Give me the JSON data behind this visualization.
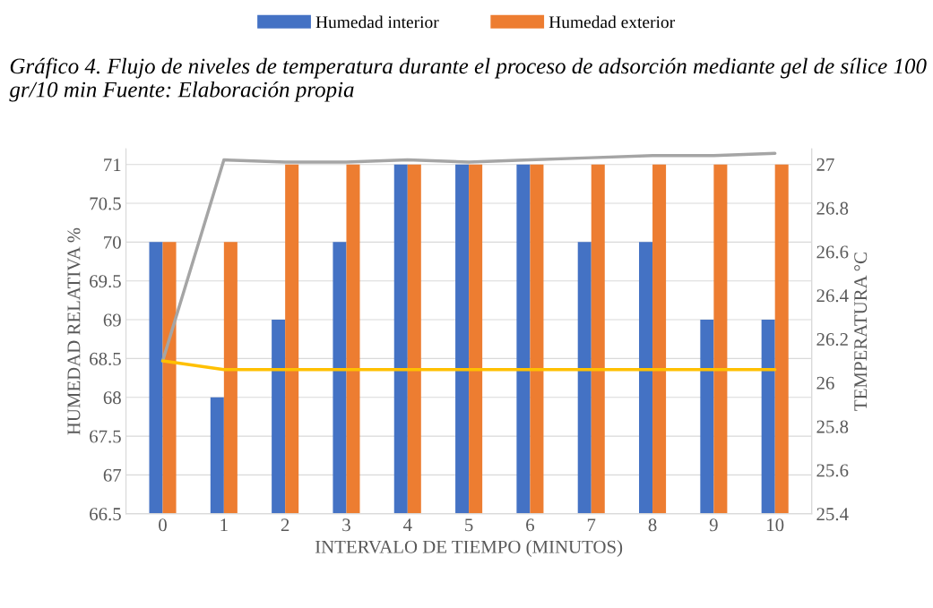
{
  "chart_data": {
    "type": "bar",
    "title": "Gráfico 4. Flujo de niveles de temperatura durante el proceso de adsorción mediante gel de sílice 100 gr/10 min Fuente: Elaboración propia",
    "categories": [
      "0",
      "1",
      "2",
      "3",
      "4",
      "5",
      "6",
      "7",
      "8",
      "9",
      "10"
    ],
    "series": [
      {
        "name": "Humedad interior",
        "color": "#4472c4",
        "values": [
          70,
          68,
          69,
          70,
          71,
          71,
          71,
          70,
          70,
          69,
          69
        ]
      },
      {
        "name": "Humedad exterior",
        "color": "#ed7d31",
        "values": [
          70,
          70,
          71,
          71,
          71,
          71,
          71,
          71,
          71,
          71,
          71
        ]
      },
      {
        "type": "line",
        "axis": "y2",
        "color": "#a5a5a5",
        "values": [
          26.1,
          27.02,
          27.01,
          27.01,
          27.02,
          27.01,
          27.02,
          27.03,
          27.04,
          27.04,
          27.05
        ]
      },
      {
        "type": "line",
        "axis": "y2",
        "color": "#ffc000",
        "values": [
          26.1,
          26.06,
          26.06,
          26.06,
          26.06,
          26.06,
          26.06,
          26.06,
          26.06,
          26.06,
          26.06
        ]
      }
    ],
    "xlabel": "INTERVALO DE TIEMPO (MINUTOS)",
    "ylabel": "HUMEDAD RELATIVA %",
    "y2label": "TEMPERATURA °C",
    "ylim": [
      66.5,
      71.2
    ],
    "yticks": [
      66.5,
      67,
      67.5,
      68,
      68.5,
      69,
      69.5,
      70,
      70.5,
      71
    ],
    "y2lim": [
      25.4,
      27.07
    ],
    "y2ticks": [
      25.4,
      25.6,
      25.8,
      26,
      26.2,
      26.4,
      26.6,
      26.8,
      27
    ],
    "grid": "y",
    "legend": "top"
  }
}
